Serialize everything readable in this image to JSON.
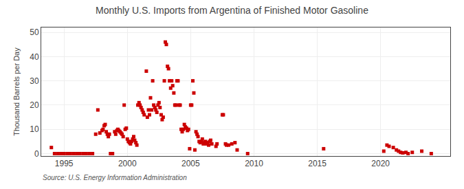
{
  "chart_data": {
    "type": "scatter",
    "title": "Monthly U.S. Imports from Argentina of Finished Motor Gasoline",
    "ylabel": "Thousand Barrels per Day",
    "annotations": [
      "Source: U.S. Energy Information Administration"
    ],
    "color": "#cc0000",
    "marker": "square",
    "grid": true,
    "xlim": [
      1993.2,
      2025.5
    ],
    "ylim": [
      -1,
      52
    ],
    "xticks": [
      1995,
      2000,
      2005,
      2010,
      2015,
      2020
    ],
    "yticks": [
      0,
      10,
      20,
      30,
      40,
      50
    ],
    "x": [
      1994.0,
      1994.25,
      1994.5,
      1994.75,
      1995.0,
      1995.25,
      1995.5,
      1995.75,
      1996.0,
      1996.25,
      1996.5,
      1996.75,
      1997.0,
      1997.25,
      1997.5,
      1997.67,
      1997.83,
      1998.0,
      1998.08,
      1998.17,
      1998.25,
      1998.33,
      1998.42,
      1998.5,
      1998.58,
      1998.67,
      1998.75,
      1998.83,
      1999.0,
      1999.08,
      1999.17,
      1999.25,
      1999.33,
      1999.42,
      1999.5,
      1999.58,
      1999.67,
      1999.75,
      1999.83,
      1999.92,
      2000.0,
      2000.08,
      2000.17,
      2000.25,
      2000.33,
      2000.42,
      2000.5,
      2000.58,
      2000.67,
      2000.75,
      2000.83,
      2000.92,
      2001.0,
      2001.08,
      2001.17,
      2001.25,
      2001.33,
      2001.5,
      2001.58,
      2001.67,
      2001.75,
      2001.83,
      2001.92,
      2002.0,
      2002.08,
      2002.17,
      2002.25,
      2002.33,
      2002.42,
      2002.5,
      2002.58,
      2002.67,
      2002.75,
      2002.83,
      2002.92,
      2003.0,
      2003.08,
      2003.17,
      2003.25,
      2003.33,
      2003.42,
      2003.5,
      2003.58,
      2003.67,
      2003.75,
      2003.83,
      2003.92,
      2004.0,
      2004.08,
      2004.17,
      2004.25,
      2004.33,
      2004.42,
      2004.5,
      2004.58,
      2004.67,
      2004.75,
      2004.83,
      2004.92,
      2005.0,
      2005.08,
      2005.17,
      2005.25,
      2005.33,
      2005.42,
      2005.5,
      2005.58,
      2005.67,
      2005.75,
      2005.83,
      2005.92,
      2006.0,
      2006.08,
      2006.17,
      2006.25,
      2006.33,
      2006.42,
      2006.5,
      2006.58,
      2006.67,
      2007.0,
      2007.08,
      2007.5,
      2007.58,
      2007.75,
      2007.83,
      2008.0,
      2008.25,
      2008.5,
      2008.67,
      2009.5,
      2015.5,
      2020.25,
      2020.5,
      2020.67,
      2021.0,
      2021.25,
      2021.42,
      2021.58,
      2021.75,
      2022.0,
      2022.17,
      2022.5,
      2023.25,
      2024.0
    ],
    "values": [
      2.5,
      0.0,
      0.0,
      0.0,
      0.0,
      0.0,
      0.0,
      0.0,
      0.0,
      0.0,
      0.0,
      0.0,
      0.0,
      0.0,
      8.0,
      18.0,
      8.5,
      9.5,
      10.0,
      11.5,
      12.0,
      9.0,
      8.0,
      7.0,
      8.0,
      0.0,
      0.0,
      0.0,
      9.0,
      8.0,
      9.5,
      10.0,
      9.5,
      9.0,
      8.5,
      8.0,
      7.0,
      20.0,
      10.0,
      10.5,
      6.0,
      5.0,
      4.5,
      4.0,
      5.0,
      6.0,
      7.0,
      5.5,
      4.5,
      3.5,
      20.0,
      21.0,
      20.0,
      19.0,
      18.0,
      17.0,
      16.0,
      34.0,
      15.0,
      18.0,
      16.0,
      23.0,
      18.0,
      30.0,
      20.0,
      19.0,
      18.0,
      17.0,
      20.0,
      21.0,
      19.0,
      16.0,
      14.0,
      15.0,
      30.0,
      46.0,
      45.0,
      36.0,
      35.0,
      30.0,
      27.0,
      30.0,
      28.0,
      25.0,
      20.0,
      20.0,
      30.0,
      30.0,
      20.0,
      20.0,
      10.0,
      9.0,
      10.0,
      12.0,
      11.0,
      10.5,
      9.5,
      10.0,
      2.0,
      20.0,
      20.0,
      30.0,
      25.0,
      1.5,
      9.0,
      8.0,
      7.0,
      5.0,
      4.5,
      5.0,
      6.0,
      4.0,
      4.5,
      5.0,
      4.0,
      4.5,
      3.5,
      5.0,
      5.5,
      4.0,
      3.0,
      4.0,
      16.0,
      16.0,
      4.0,
      3.5,
      3.5,
      4.0,
      4.5,
      1.5,
      0.0,
      2.0,
      1.0,
      3.5,
      3.0,
      2.5,
      1.5,
      1.0,
      0.5,
      0.3,
      0.5,
      0.0,
      0.5,
      1.0,
      0.0
    ]
  }
}
